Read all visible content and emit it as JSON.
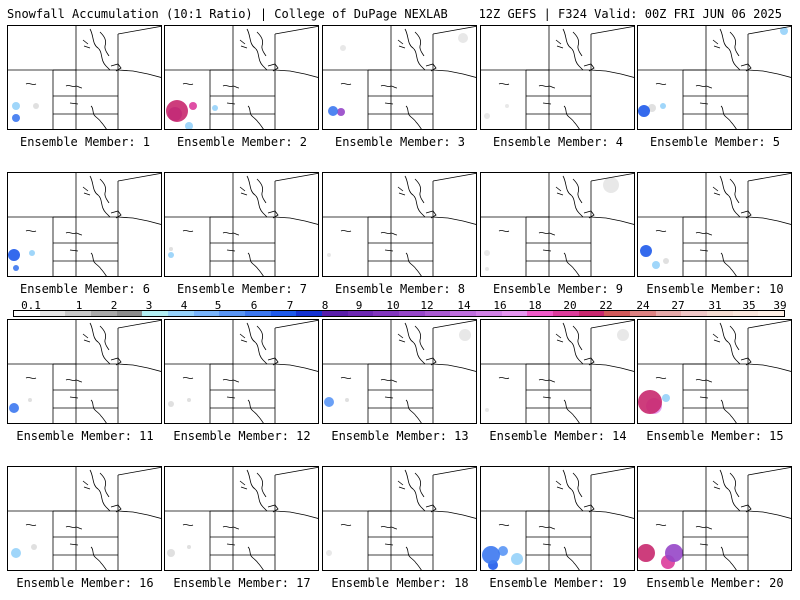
{
  "header": {
    "left": "Snowfall Accumulation (10:1 Ratio) | College of DuPage NEXLAB",
    "right": "12Z GEFS | F324 Valid: 00Z FRI JUN 06 2025"
  },
  "legend": {
    "ticks": [
      "0.1",
      "1",
      "2",
      "3",
      "4",
      "5",
      "6",
      "7",
      "8",
      "9",
      "10",
      "12",
      "14",
      "16",
      "18",
      "20",
      "22",
      "24",
      "27",
      "31",
      "35",
      "39"
    ],
    "colors": [
      "#ffffff",
      "#e6e6e6",
      "#c8c8c8",
      "#a8a8a8",
      "#8c8c8c",
      "#b4f0f4",
      "#96d2fa",
      "#78b4fa",
      "#5a96f5",
      "#3c78f0",
      "#1e5aeb",
      "#1432d2",
      "#5a1eaa",
      "#6e28b4",
      "#8236be",
      "#9646c8",
      "#aa5ad2",
      "#be6edc",
      "#d282e6",
      "#e696f0",
      "#f05ac8",
      "#dc3c9b",
      "#c8286e",
      "#d25a5a",
      "#dc8282",
      "#e6aaaa",
      "#f0c8c8",
      "#f5dcd2",
      "#fae6dc",
      "#fff0e6"
    ]
  },
  "panels": [
    {
      "id": 1,
      "label": "Ensemble Member: 1",
      "snow": [
        {
          "x": 8,
          "y": 92,
          "r": 4,
          "c": "#3c78f0"
        },
        {
          "x": 8,
          "y": 80,
          "r": 4,
          "c": "#96d2fa"
        },
        {
          "x": 28,
          "y": 80,
          "r": 3,
          "c": "#dddddd"
        }
      ]
    },
    {
      "id": 2,
      "label": "Ensemble Member: 2",
      "snow": [
        {
          "x": 12,
          "y": 85,
          "r": 11,
          "c": "#c8286e"
        },
        {
          "x": 10,
          "y": 88,
          "r": 7,
          "c": "#9646c8"
        },
        {
          "x": 24,
          "y": 100,
          "r": 4,
          "c": "#96d2fa"
        },
        {
          "x": 28,
          "y": 80,
          "r": 4,
          "c": "#dc3c9b"
        },
        {
          "x": 50,
          "y": 82,
          "r": 3,
          "c": "#96d2fa"
        }
      ]
    },
    {
      "id": 3,
      "label": "Ensemble Member: 3",
      "snow": [
        {
          "x": 10,
          "y": 85,
          "r": 5,
          "c": "#3c78f0"
        },
        {
          "x": 18,
          "y": 86,
          "r": 4,
          "c": "#9646c8"
        },
        {
          "x": 20,
          "y": 22,
          "r": 3,
          "c": "#e6e6e6"
        },
        {
          "x": 140,
          "y": 12,
          "r": 5,
          "c": "#e6e6e6"
        }
      ]
    },
    {
      "id": 4,
      "label": "Ensemble Member: 4",
      "snow": [
        {
          "x": 6,
          "y": 90,
          "r": 3,
          "c": "#e6e6e6"
        },
        {
          "x": 26,
          "y": 80,
          "r": 2,
          "c": "#e6e6e6"
        }
      ]
    },
    {
      "id": 5,
      "label": "Ensemble Member: 5",
      "snow": [
        {
          "x": 6,
          "y": 85,
          "r": 6,
          "c": "#1e5aeb"
        },
        {
          "x": 25,
          "y": 80,
          "r": 3,
          "c": "#96d2fa"
        },
        {
          "x": 146,
          "y": 5,
          "r": 4,
          "c": "#96d2fa"
        },
        {
          "x": 14,
          "y": 82,
          "r": 4,
          "c": "#dddddd"
        }
      ]
    },
    {
      "id": 6,
      "label": "Ensemble Member: 6",
      "snow": [
        {
          "x": 6,
          "y": 82,
          "r": 6,
          "c": "#1e5aeb"
        },
        {
          "x": 24,
          "y": 80,
          "r": 3,
          "c": "#96d2fa"
        },
        {
          "x": 8,
          "y": 95,
          "r": 3,
          "c": "#3c78f0"
        }
      ]
    },
    {
      "id": 7,
      "label": "Ensemble Member: 7",
      "snow": [
        {
          "x": 6,
          "y": 82,
          "r": 3,
          "c": "#96d2fa"
        },
        {
          "x": 6,
          "y": 76,
          "r": 2,
          "c": "#dddddd"
        }
      ]
    },
    {
      "id": 8,
      "label": "Ensemble Member: 8",
      "snow": [
        {
          "x": 6,
          "y": 82,
          "r": 2,
          "c": "#e6e6e6"
        }
      ]
    },
    {
      "id": 9,
      "label": "Ensemble Member: 9",
      "snow": [
        {
          "x": 6,
          "y": 80,
          "r": 3,
          "c": "#e6e6e6"
        },
        {
          "x": 130,
          "y": 12,
          "r": 8,
          "c": "#e6e6e6"
        },
        {
          "x": 6,
          "y": 96,
          "r": 2,
          "c": "#e6e6e6"
        }
      ]
    },
    {
      "id": 10,
      "label": "Ensemble Member: 10",
      "snow": [
        {
          "x": 8,
          "y": 78,
          "r": 6,
          "c": "#1e5aeb"
        },
        {
          "x": 18,
          "y": 92,
          "r": 4,
          "c": "#96d2fa"
        },
        {
          "x": 28,
          "y": 88,
          "r": 3,
          "c": "#dddddd"
        }
      ]
    },
    {
      "id": 11,
      "label": "Ensemble Member: 11",
      "snow": [
        {
          "x": 6,
          "y": 88,
          "r": 5,
          "c": "#3c78f0"
        },
        {
          "x": 22,
          "y": 80,
          "r": 2,
          "c": "#dddddd"
        }
      ]
    },
    {
      "id": 12,
      "label": "Ensemble Member: 12",
      "snow": [
        {
          "x": 6,
          "y": 84,
          "r": 3,
          "c": "#dddddd"
        },
        {
          "x": 24,
          "y": 80,
          "r": 2,
          "c": "#dddddd"
        }
      ]
    },
    {
      "id": 13,
      "label": "Ensemble Member: 13",
      "snow": [
        {
          "x": 6,
          "y": 82,
          "r": 5,
          "c": "#5a96f5"
        },
        {
          "x": 142,
          "y": 15,
          "r": 6,
          "c": "#e6e6e6"
        },
        {
          "x": 24,
          "y": 80,
          "r": 2,
          "c": "#dddddd"
        }
      ]
    },
    {
      "id": 14,
      "label": "Ensemble Member: 14",
      "snow": [
        {
          "x": 142,
          "y": 15,
          "r": 6,
          "c": "#e6e6e6"
        },
        {
          "x": 6,
          "y": 90,
          "r": 2,
          "c": "#e6e6e6"
        }
      ]
    },
    {
      "id": 15,
      "label": "Ensemble Member: 15",
      "snow": [
        {
          "x": 12,
          "y": 82,
          "r": 12,
          "c": "#c8286e"
        },
        {
          "x": 16,
          "y": 86,
          "r": 8,
          "c": "#e696f0"
        },
        {
          "x": 28,
          "y": 78,
          "r": 4,
          "c": "#96d2fa"
        }
      ]
    },
    {
      "id": 16,
      "label": "Ensemble Member: 16",
      "snow": [
        {
          "x": 8,
          "y": 86,
          "r": 5,
          "c": "#96d2fa"
        },
        {
          "x": 26,
          "y": 80,
          "r": 3,
          "c": "#dddddd"
        }
      ]
    },
    {
      "id": 17,
      "label": "Ensemble Member: 17",
      "snow": [
        {
          "x": 6,
          "y": 86,
          "r": 4,
          "c": "#dddddd"
        },
        {
          "x": 24,
          "y": 80,
          "r": 2,
          "c": "#dddddd"
        }
      ]
    },
    {
      "id": 18,
      "label": "Ensemble Member: 18",
      "snow": [
        {
          "x": 6,
          "y": 86,
          "r": 3,
          "c": "#e6e6e6"
        }
      ]
    },
    {
      "id": 19,
      "label": "Ensemble Member: 19",
      "snow": [
        {
          "x": 10,
          "y": 88,
          "r": 9,
          "c": "#3c78f0"
        },
        {
          "x": 22,
          "y": 84,
          "r": 5,
          "c": "#5a96f5"
        },
        {
          "x": 36,
          "y": 92,
          "r": 6,
          "c": "#96d2fa"
        },
        {
          "x": 12,
          "y": 98,
          "r": 5,
          "c": "#1e5aeb"
        }
      ]
    },
    {
      "id": 20,
      "label": "Ensemble Member: 20",
      "snow": [
        {
          "x": 8,
          "y": 86,
          "r": 9,
          "c": "#c8286e"
        },
        {
          "x": 36,
          "y": 86,
          "r": 9,
          "c": "#9646c8"
        },
        {
          "x": 30,
          "y": 95,
          "r": 7,
          "c": "#dc3c9b"
        }
      ]
    }
  ]
}
